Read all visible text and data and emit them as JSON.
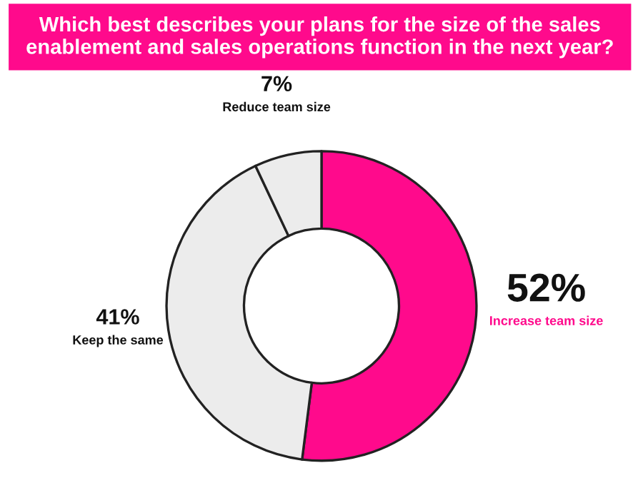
{
  "chart_data": {
    "type": "donut",
    "title": "Which best describes your plans for the size of the sales enablement and sales operations function in the next year?",
    "categories": [
      "Increase team size",
      "Keep the same",
      "Reduce team size"
    ],
    "values": [
      52,
      41,
      7
    ],
    "colors": [
      "#ff0a8c",
      "#ececec",
      "#ececec"
    ],
    "value_labels": [
      "52%",
      "41%",
      "7%"
    ]
  }
}
